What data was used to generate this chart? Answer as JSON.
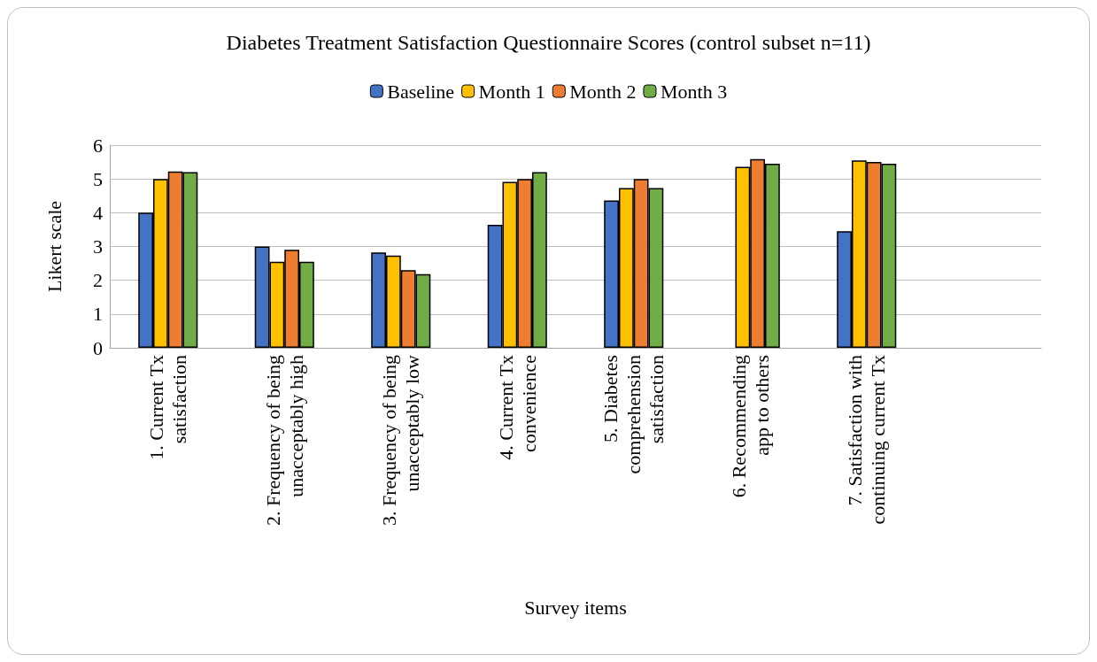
{
  "chart_data": {
    "type": "bar",
    "title": "Diabetes Treatment Satisfaction Questionnaire Scores (control subset n=11)",
    "xlabel": "Survey items",
    "ylabel": "Likert scale",
    "categories": [
      "1. Current Tx\nsatisfaction",
      "2. Frequency of being\nunacceptably high",
      "3. Frequency of being\nunacceptably low",
      "4. Current Tx\nconvenience",
      "5. Diabetes\ncomprehension\nsatisfaction",
      "6. Recommending\napp to others",
      "7. Satisfaction with\ncontinuing current Tx",
      null
    ],
    "series": [
      {
        "name": "Baseline",
        "color": "#4472c4",
        "values": [
          4.0,
          3.0,
          2.82,
          3.64,
          4.36,
          null,
          3.45,
          null
        ]
      },
      {
        "name": "Month 1",
        "color": "#ffc000",
        "values": [
          5.0,
          2.55,
          2.73,
          4.91,
          4.73,
          5.36,
          5.55,
          null
        ]
      },
      {
        "name": "Month 2",
        "color": "#ed7d31",
        "values": [
          5.22,
          2.9,
          2.3,
          5.0,
          5.0,
          5.59,
          5.5,
          null
        ]
      },
      {
        "name": "Month 3",
        "color": "#70ad47",
        "values": [
          5.2,
          2.55,
          2.18,
          5.2,
          4.73,
          5.45,
          5.45,
          null
        ]
      }
    ],
    "ylim": [
      0,
      6
    ],
    "yticks": [
      0,
      1,
      2,
      3,
      4,
      5,
      6
    ],
    "grid": "y",
    "legend": "top"
  }
}
